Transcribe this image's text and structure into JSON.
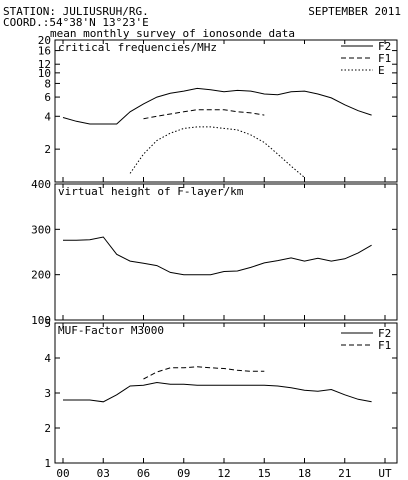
{
  "header": {
    "station": "STATION: JULIUSRUH/RG.",
    "coord": "COORD.:54°38'N 13°23'E",
    "date": "SEPTEMBER 2011",
    "subtitle": "mean monthly survey of ionosonde data"
  },
  "chart_data": [
    {
      "type": "line",
      "title": "critical frequencies/MHz",
      "yscale": "log",
      "ylim": [
        1.0,
        20
      ],
      "yticks": [
        2,
        4,
        6,
        8,
        10,
        12,
        16,
        20
      ],
      "xlim": [
        0,
        24
      ],
      "xticks": [
        0,
        3,
        6,
        9,
        12,
        15,
        18,
        21,
        24
      ],
      "xtick_labels": [
        "00",
        "03",
        "06",
        "09",
        "12",
        "15",
        "18",
        "21",
        "UT"
      ],
      "legend": "top-right",
      "series": [
        {
          "name": "F2",
          "style": "solid",
          "x": [
            0,
            1,
            2,
            3,
            4,
            5,
            6,
            7,
            8,
            9,
            10,
            11,
            12,
            13,
            14,
            15,
            16,
            17,
            18,
            19,
            20,
            21,
            22,
            23
          ],
          "y": [
            3.9,
            3.6,
            3.4,
            3.4,
            3.4,
            4.4,
            5.2,
            6.0,
            6.5,
            6.8,
            7.2,
            7.0,
            6.7,
            6.9,
            6.8,
            6.4,
            6.3,
            6.7,
            6.8,
            6.4,
            5.9,
            5.1,
            4.5,
            4.1
          ]
        },
        {
          "name": "F1",
          "style": "dashed",
          "x": [
            6,
            7,
            8,
            9,
            10,
            11,
            12,
            13,
            14,
            15
          ],
          "y": [
            3.8,
            4.0,
            4.2,
            4.4,
            4.6,
            4.6,
            4.6,
            4.4,
            4.3,
            4.1
          ]
        },
        {
          "name": "E",
          "style": "dotted",
          "x": [
            5,
            6,
            7,
            8,
            9,
            10,
            11,
            12,
            13,
            14,
            15,
            16,
            17,
            18
          ],
          "y": [
            1.2,
            1.8,
            2.4,
            2.8,
            3.1,
            3.2,
            3.2,
            3.1,
            3.0,
            2.7,
            2.3,
            1.8,
            1.4,
            1.1
          ]
        }
      ]
    },
    {
      "type": "line",
      "title": "virtual height of F-layer/km",
      "ylim": [
        100,
        400
      ],
      "yticks": [
        100,
        200,
        300,
        400
      ],
      "xlim": [
        0,
        24
      ],
      "series": [
        {
          "style": "solid",
          "x": [
            0,
            1,
            2,
            3,
            4,
            5,
            6,
            7,
            8,
            9,
            10,
            11,
            12,
            13,
            14,
            15,
            16,
            17,
            18,
            19,
            20,
            21,
            22,
            23
          ],
          "y": [
            276,
            276,
            277,
            283,
            245,
            230,
            225,
            220,
            205,
            200,
            200,
            200,
            207,
            208,
            216,
            226,
            231,
            237,
            230,
            236,
            230,
            235,
            248,
            265
          ]
        }
      ]
    },
    {
      "type": "line",
      "title": "MUF-Factor M3000",
      "ylim": [
        1,
        5
      ],
      "yticks": [
        1,
        2,
        3,
        4,
        5
      ],
      "xlim": [
        0,
        24
      ],
      "xticks": [
        0,
        3,
        6,
        9,
        12,
        15,
        18,
        21,
        24
      ],
      "xtick_labels": [
        "00",
        "03",
        "06",
        "09",
        "12",
        "15",
        "18",
        "21",
        "UT"
      ],
      "legend": "top-right",
      "series": [
        {
          "name": "F2",
          "style": "solid",
          "x": [
            0,
            1,
            2,
            3,
            4,
            5,
            6,
            7,
            8,
            9,
            10,
            11,
            12,
            13,
            14,
            15,
            16,
            17,
            18,
            19,
            20,
            21,
            22,
            23
          ],
          "y": [
            2.8,
            2.8,
            2.8,
            2.75,
            2.95,
            3.2,
            3.22,
            3.3,
            3.25,
            3.25,
            3.22,
            3.22,
            3.22,
            3.22,
            3.22,
            3.22,
            3.2,
            3.15,
            3.08,
            3.05,
            3.1,
            2.95,
            2.82,
            2.75
          ]
        },
        {
          "name": "F1",
          "style": "dashed",
          "x": [
            6,
            7,
            8,
            9,
            10,
            11,
            12,
            13,
            14,
            15
          ],
          "y": [
            3.4,
            3.6,
            3.72,
            3.72,
            3.75,
            3.72,
            3.7,
            3.65,
            3.62,
            3.62
          ]
        }
      ]
    }
  ]
}
